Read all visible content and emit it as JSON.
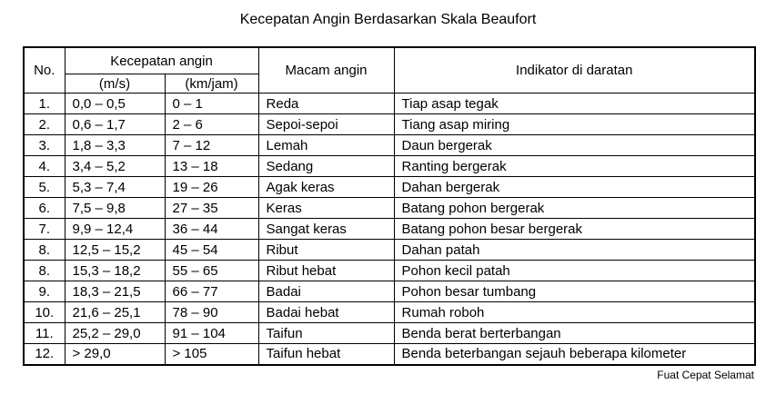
{
  "title": "Kecepatan Angin Berdasarkan Skala Beaufort",
  "footer_credit": "Fuat Cepat Selamat",
  "table": {
    "headers": {
      "no": "No.",
      "speed_group": "Kecepatan angin",
      "speed_ms": "(m/s)",
      "speed_kmjam": "(km/jam)",
      "wind_type": "Macam angin",
      "indicator": "Indikator di daratan"
    },
    "field_order": "no,ms,kmjam,macam,indikator",
    "rows": [
      {
        "no": "1.",
        "ms": "0,0 – 0,5",
        "kmjam": "0 – 1",
        "macam": "Reda",
        "indikator": "Tiap asap tegak"
      },
      {
        "no": "2.",
        "ms": "0,6 – 1,7",
        "kmjam": "2 – 6",
        "macam": "Sepoi-sepoi",
        "indikator": "Tiang asap miring"
      },
      {
        "no": "3.",
        "ms": "1,8 – 3,3",
        "kmjam": "7 – 12",
        "macam": "Lemah",
        "indikator": "Daun bergerak"
      },
      {
        "no": "4.",
        "ms": "3,4 – 5,2",
        "kmjam": "13 – 18",
        "macam": "Sedang",
        "indikator": "Ranting bergerak"
      },
      {
        "no": "5.",
        "ms": "5,3 – 7,4",
        "kmjam": "19 – 26",
        "macam": "Agak keras",
        "indikator": "Dahan bergerak"
      },
      {
        "no": "6.",
        "ms": "7,5 – 9,8",
        "kmjam": "27 – 35",
        "macam": "Keras",
        "indikator": "Batang pohon bergerak"
      },
      {
        "no": "7.",
        "ms": "9,9 – 12,4",
        "kmjam": "36 – 44",
        "macam": "Sangat keras",
        "indikator": "Batang pohon besar bergerak"
      },
      {
        "no": "8.",
        "ms": "12,5 – 15,2",
        "kmjam": "45 – 54",
        "macam": "Ribut",
        "indikator": "Dahan patah"
      },
      {
        "no": "8.",
        "ms": "15,3 – 18,2",
        "kmjam": "55 – 65",
        "macam": "Ribut hebat",
        "indikator": "Pohon kecil patah"
      },
      {
        "no": "9.",
        "ms": "18,3 – 21,5",
        "kmjam": "66 – 77",
        "macam": "Badai",
        "indikator": "Pohon besar tumbang"
      },
      {
        "no": "10.",
        "ms": "21,6 – 25,1",
        "kmjam": "78 – 90",
        "macam": "Badai hebat",
        "indikator": "Rumah roboh"
      },
      {
        "no": "11.",
        "ms": "25,2 – 29,0",
        "kmjam": "91 – 104",
        "macam": "Taifun",
        "indikator": "Benda berat berterbangan"
      },
      {
        "no": "12.",
        "ms": "> 29,0",
        "kmjam": "> 105",
        "macam": "Taifun hebat",
        "indikator": "Benda beterbangan sejauh beberapa kilometer"
      }
    ]
  }
}
